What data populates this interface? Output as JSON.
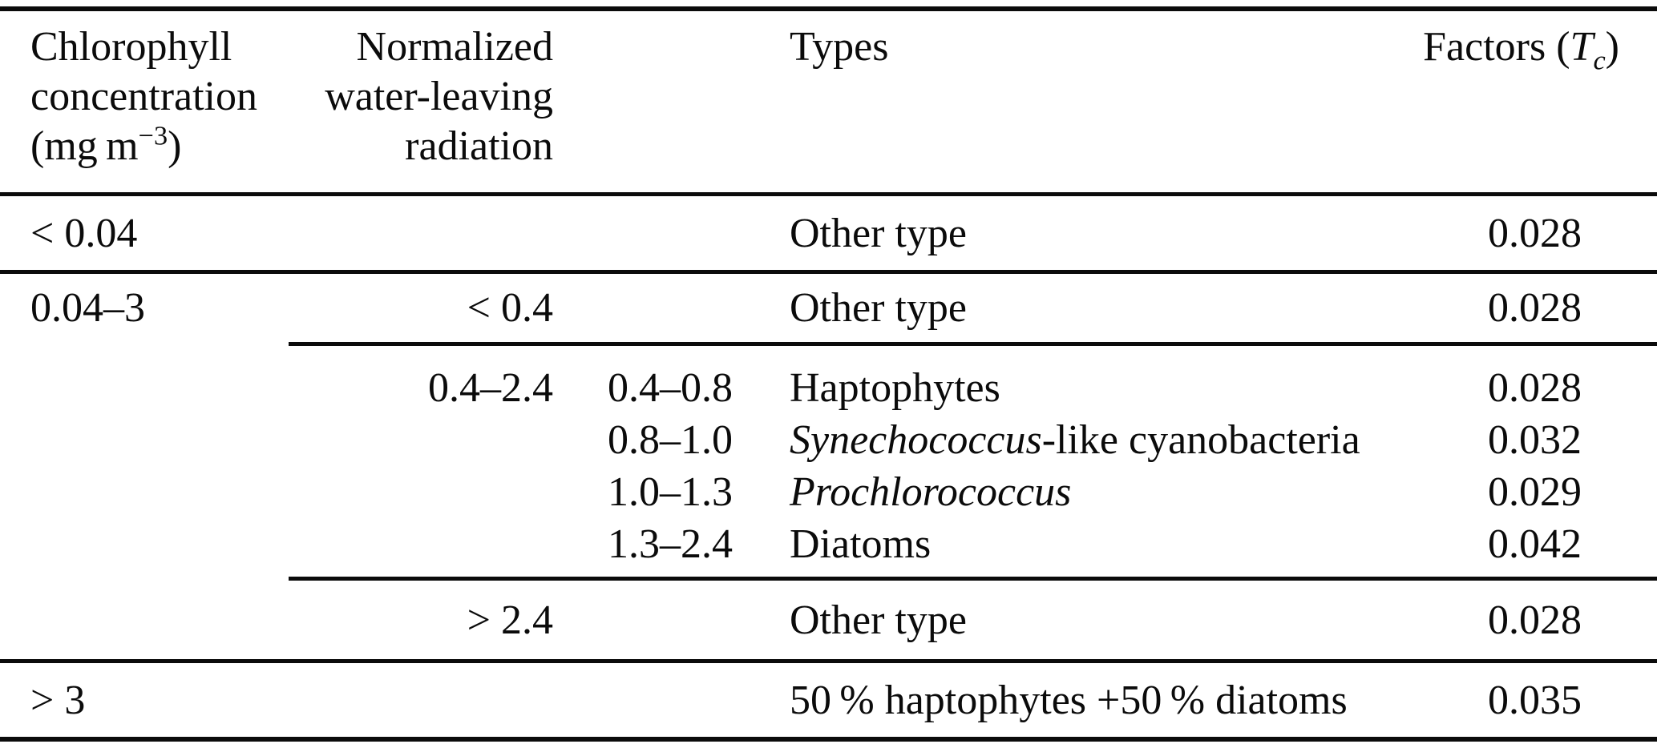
{
  "table": {
    "header": {
      "chlorophyll_lines": [
        "Chlorophyll",
        "concentration"
      ],
      "unit": {
        "prefix": "(mg m",
        "sup": "−3",
        "suffix": ")"
      },
      "radiation_lines": [
        "Normalized",
        "water-leaving",
        "radiation"
      ],
      "types": "Types",
      "factors": {
        "prefix": "Factors (",
        "symbol": "T",
        "sub": "c",
        "suffix": ")"
      }
    },
    "rows": {
      "row_lt004": {
        "chl": "< 0.04",
        "type": "Other type",
        "factor": "0.028"
      },
      "row_004_3": {
        "chl": "0.04–3",
        "rad": "< 0.4",
        "type": "Other type",
        "factor": "0.028"
      },
      "group_04_24": {
        "rad": "0.4–2.4",
        "entries": [
          {
            "range": "0.4–0.8",
            "type_em": "",
            "type_text": "Haptophytes",
            "factor": "0.028"
          },
          {
            "range": "0.8–1.0",
            "type_em": "Synechococcus",
            "type_text": "-like cyanobacteria",
            "factor": "0.032"
          },
          {
            "range": "1.0–1.3",
            "type_em": "Prochlorococcus",
            "type_text": "",
            "factor": "0.029"
          },
          {
            "range": "1.3–2.4",
            "type_em": "",
            "type_text": "Diatoms",
            "factor": "0.042"
          }
        ]
      },
      "row_gt24": {
        "rad": "> 2.4",
        "type": "Other type",
        "factor": "0.028"
      },
      "row_gt3": {
        "chl": "> 3",
        "type": "50 % haptophytes +50 % diatoms",
        "factor": "0.035"
      }
    }
  }
}
